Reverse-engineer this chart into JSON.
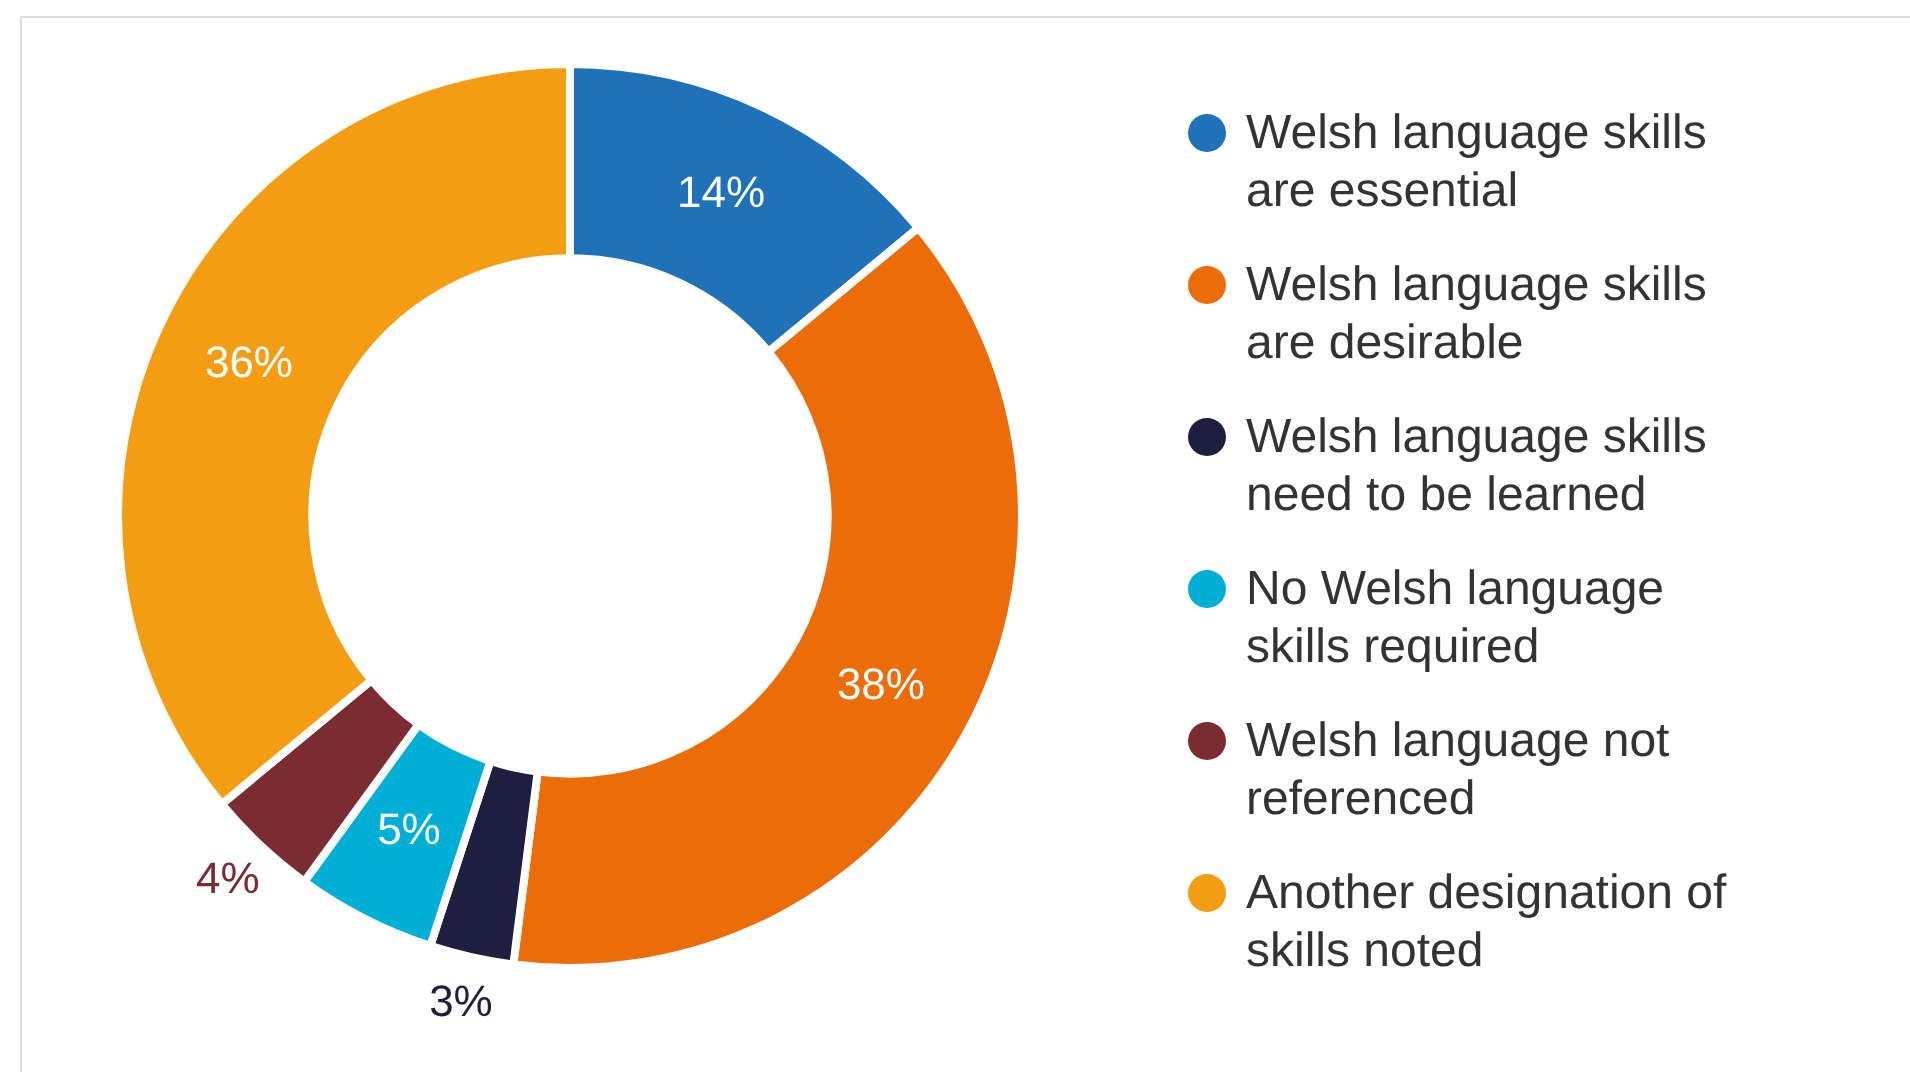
{
  "chart_data": {
    "type": "donut",
    "categories": [
      "Welsh language skills are essential",
      "Welsh language skills are desirable",
      "Welsh language skills need to be learned",
      "No Welsh language skills required",
      "Welsh language not referenced",
      "Another designation of skills noted"
    ],
    "values": [
      14,
      38,
      3,
      5,
      4,
      36
    ],
    "colors": [
      "#1f72b8",
      "#eb6c08",
      "#1c1f3f",
      "#00afd6",
      "#7a2c30",
      "#f49d12"
    ],
    "value_labels": [
      "14%",
      "38%",
      "3%",
      "5%",
      "4%",
      "36%"
    ],
    "legend": "right"
  }
}
